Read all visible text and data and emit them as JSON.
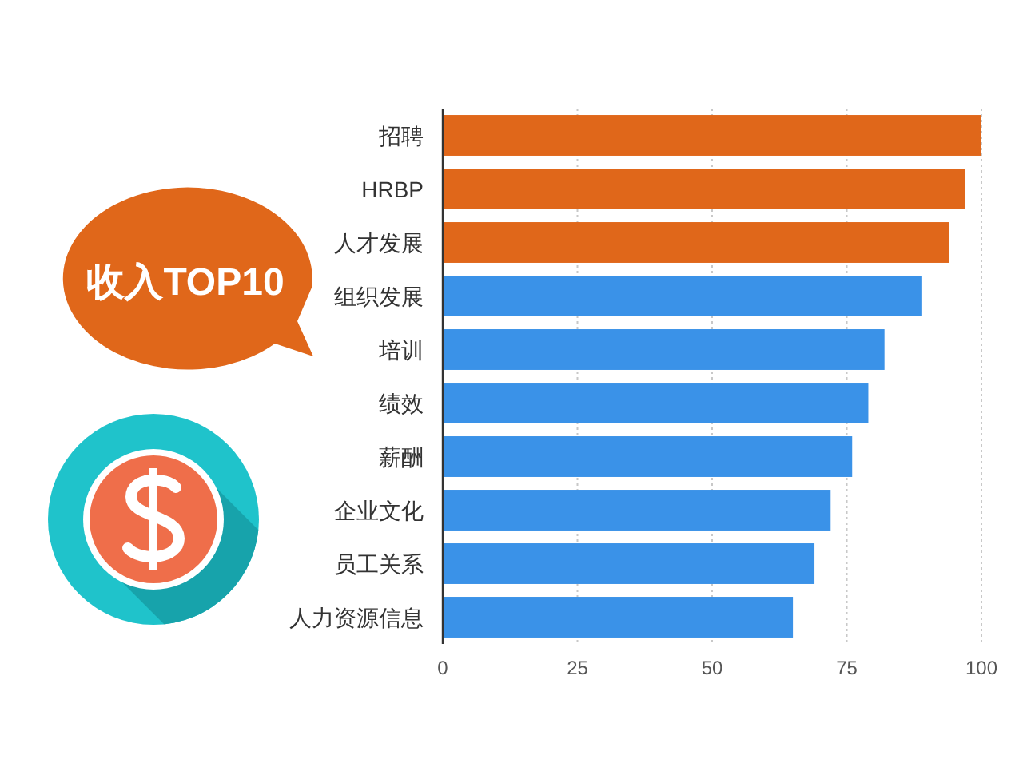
{
  "chart_data": {
    "type": "bar",
    "orientation": "horizontal",
    "title": "收入TOP10",
    "categories": [
      "招聘",
      "HRBP",
      "人才发展",
      "组织发展",
      "培训",
      "绩效",
      "薪酬",
      "企业文化",
      "员工关系",
      "人力资源信息"
    ],
    "values": [
      100,
      97,
      94,
      89,
      82,
      79,
      76,
      72,
      69,
      65
    ],
    "colors": [
      "#e0671a",
      "#e0671a",
      "#e0671a",
      "#3a92e8",
      "#3a92e8",
      "#3a92e8",
      "#3a92e8",
      "#3a92e8",
      "#3a92e8",
      "#3a92e8"
    ],
    "xlim": [
      0,
      100
    ],
    "xticks": [
      0,
      25,
      50,
      75,
      100
    ],
    "grid": "x"
  }
}
